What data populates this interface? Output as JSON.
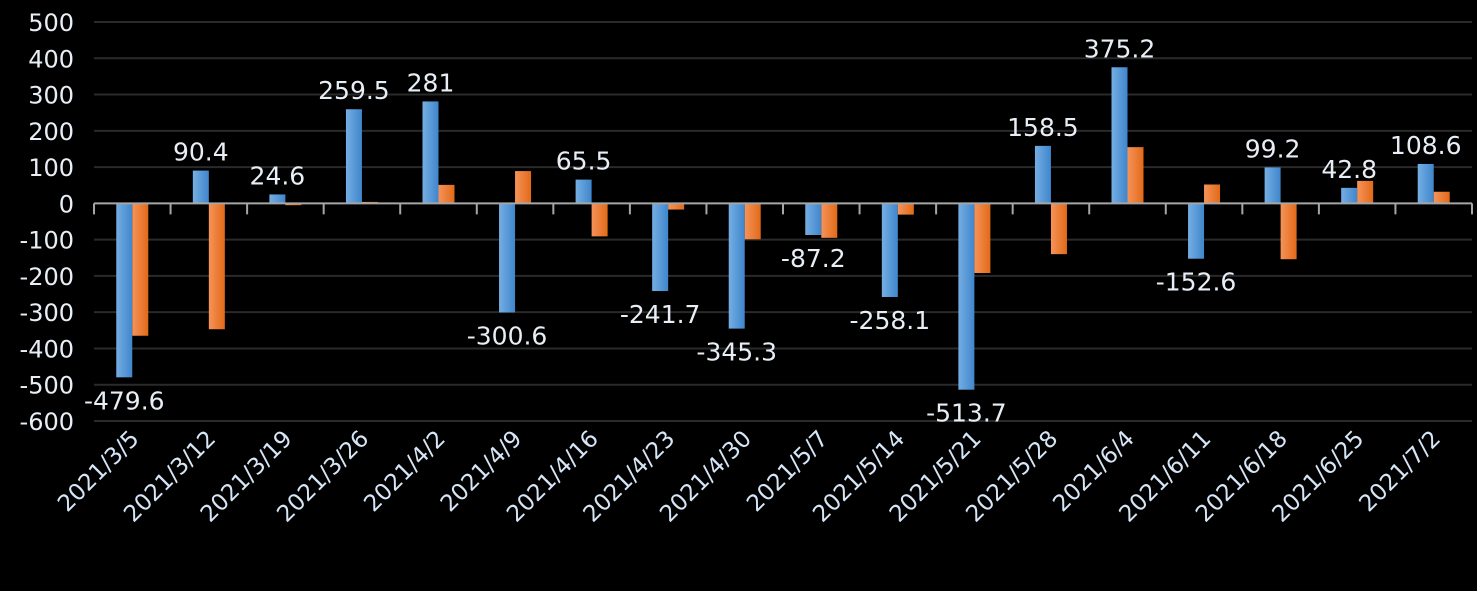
{
  "chart_data": {
    "type": "bar",
    "categories": [
      "2021/3/5",
      "2021/3/12",
      "2021/3/19",
      "2021/3/26",
      "2021/4/2",
      "2021/4/9",
      "2021/4/16",
      "2021/4/23",
      "2021/4/30",
      "2021/5/7",
      "2021/5/14",
      "2021/5/21",
      "2021/5/28",
      "2021/6/4",
      "2021/6/11",
      "2021/6/18",
      "2021/6/25",
      "2021/7/2"
    ],
    "series": [
      {
        "values": [
          -479.6,
          90.4,
          24.6,
          259.5,
          281,
          -300.6,
          65.5,
          -241.7,
          -345.3,
          -87.2,
          -258.1,
          -513.7,
          158.5,
          375.2,
          -152.6,
          99.2,
          42.8,
          108.6
        ],
        "color": "#4a90d9",
        "data_labels": [
          "-479.6",
          "90.4",
          "24.6",
          "259.5",
          "281",
          "-300.6",
          "65.5",
          "-241.7",
          "-345.3",
          "-87.2",
          "-258.1",
          "-513.7",
          "158.5",
          "375.2",
          "-152.6",
          "99.2",
          "42.8",
          "108.6"
        ]
      },
      {
        "values": [
          -365,
          -347,
          -5,
          4,
          51,
          89,
          -91,
          -17,
          -99,
          -95,
          -31,
          -192,
          -140,
          155,
          52,
          -154,
          62,
          32
        ],
        "color": "#ed7d31"
      }
    ],
    "title": "",
    "xlabel": "",
    "ylabel": "",
    "ylim": [
      -600,
      500
    ],
    "yticks": [
      "500",
      "400",
      "300",
      "200",
      "100",
      "0",
      "-100",
      "-200",
      "-300",
      "-400",
      "-500",
      "-600"
    ],
    "grid": true,
    "legend": "none"
  }
}
